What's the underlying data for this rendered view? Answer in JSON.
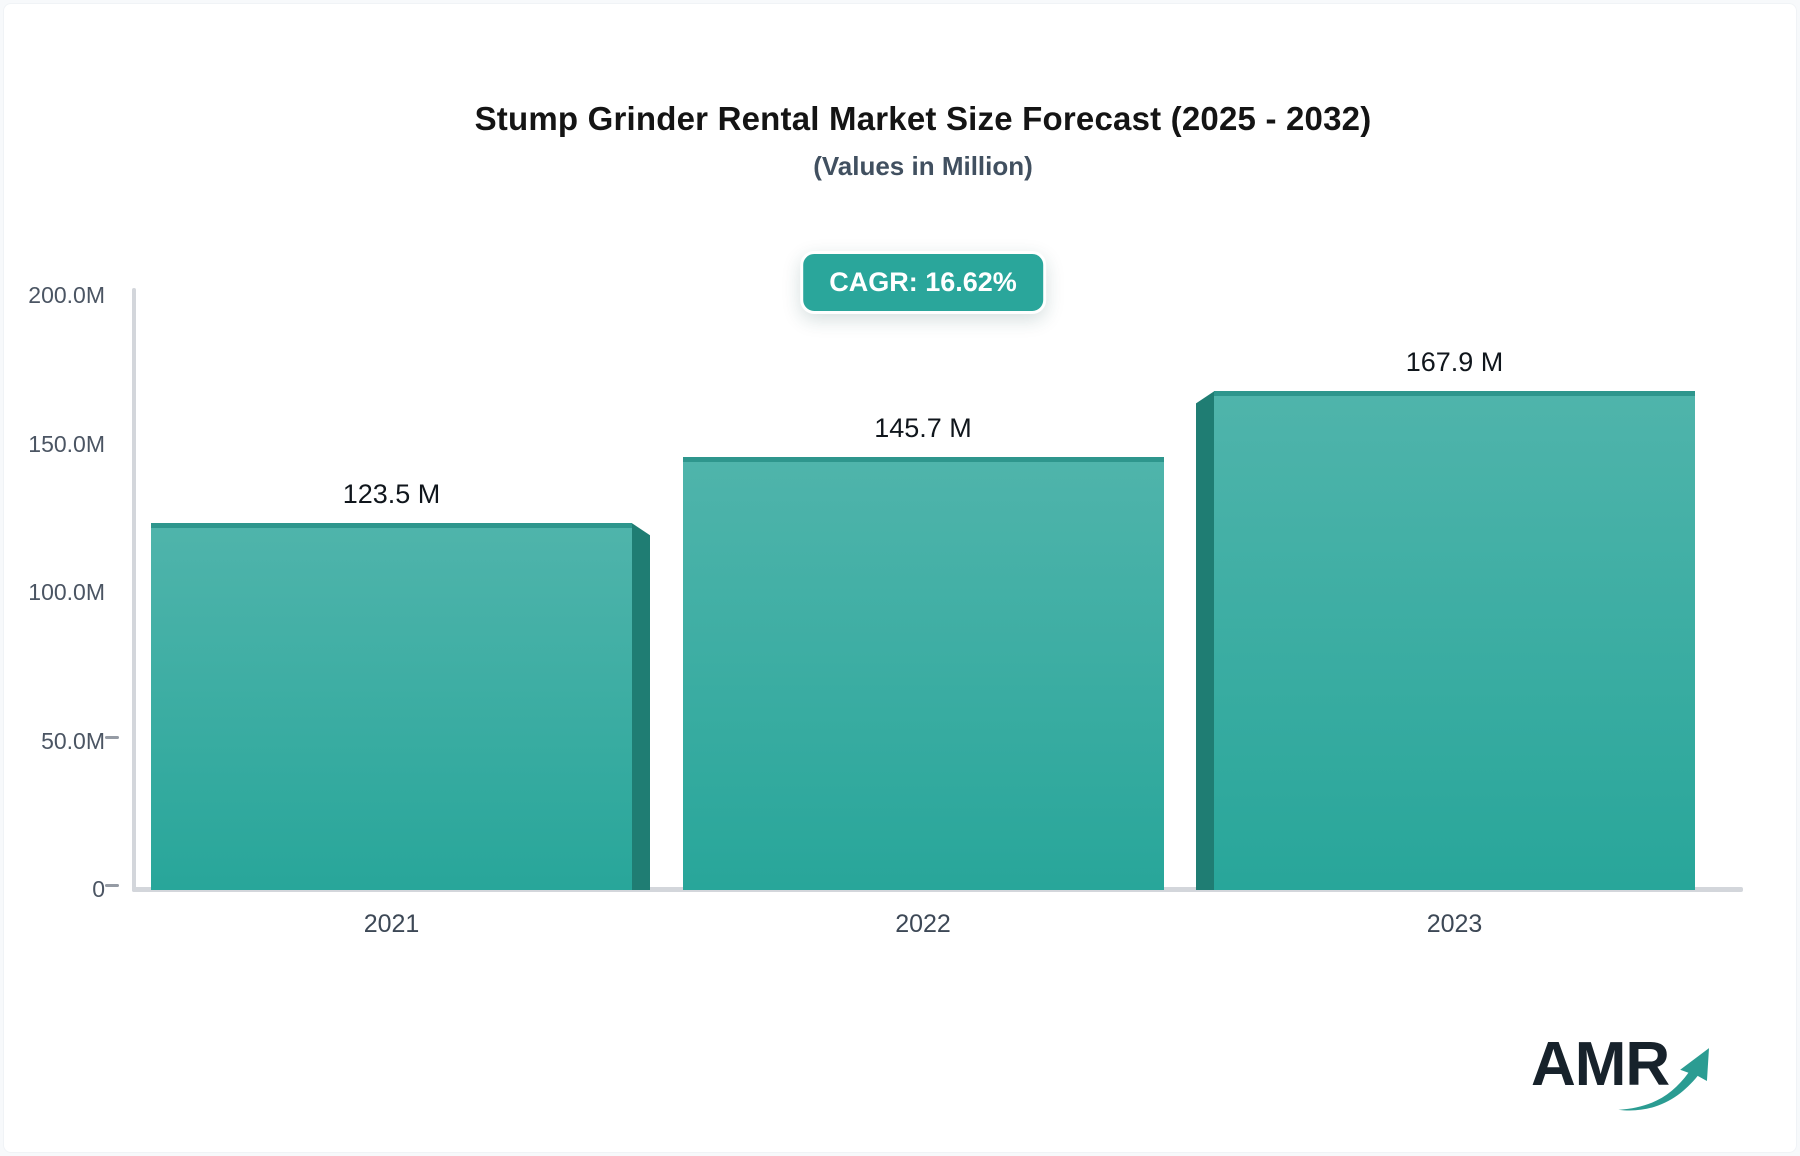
{
  "header": {
    "title": "Stump Grinder Rental Market Size Forecast (2025 - 2032)",
    "subtitle": "(Values in Million)",
    "cagr_badge": "CAGR: 16.62%"
  },
  "chart_data": {
    "type": "bar",
    "title": "Stump Grinder Rental Market Size Forecast (2025 - 2032)",
    "subtitle": "(Values in Million)",
    "unit": "Million",
    "categories": [
      "2021",
      "2022",
      "2023"
    ],
    "values": [
      123.5,
      145.7,
      167.9
    ],
    "value_labels": [
      "123.5 M",
      "145.7 M",
      "167.9 M"
    ],
    "cagr_text": "CAGR: 16.62%",
    "ylim": [
      0,
      200
    ],
    "y_tick_labels": [
      "200.0M",
      "150.0M",
      "100.0M",
      "50.0M",
      "0"
    ],
    "y_tick_values": [
      200,
      150,
      100,
      50,
      0
    ],
    "y_ticks_with_dash": [
      "50.0M",
      "0"
    ],
    "grid": false,
    "legend": false,
    "bar_3d_sides": [
      "right",
      "none",
      "left"
    ],
    "colors": {
      "bar_gradient_top": "#4fb4ab",
      "bar_gradient_bottom": "#28a69a",
      "bar_top_edge": "#2e968d",
      "bar_side_3d": "#1f7d73",
      "axis_line": "#d3d6db",
      "badge_background": "#2aa69b",
      "badge_text": "#ffffff"
    }
  },
  "logo": {
    "text": "AMR",
    "arrow_icon": "trend-up-arrow",
    "text_color": "#17222b",
    "arrow_color": "#2b9c92"
  }
}
